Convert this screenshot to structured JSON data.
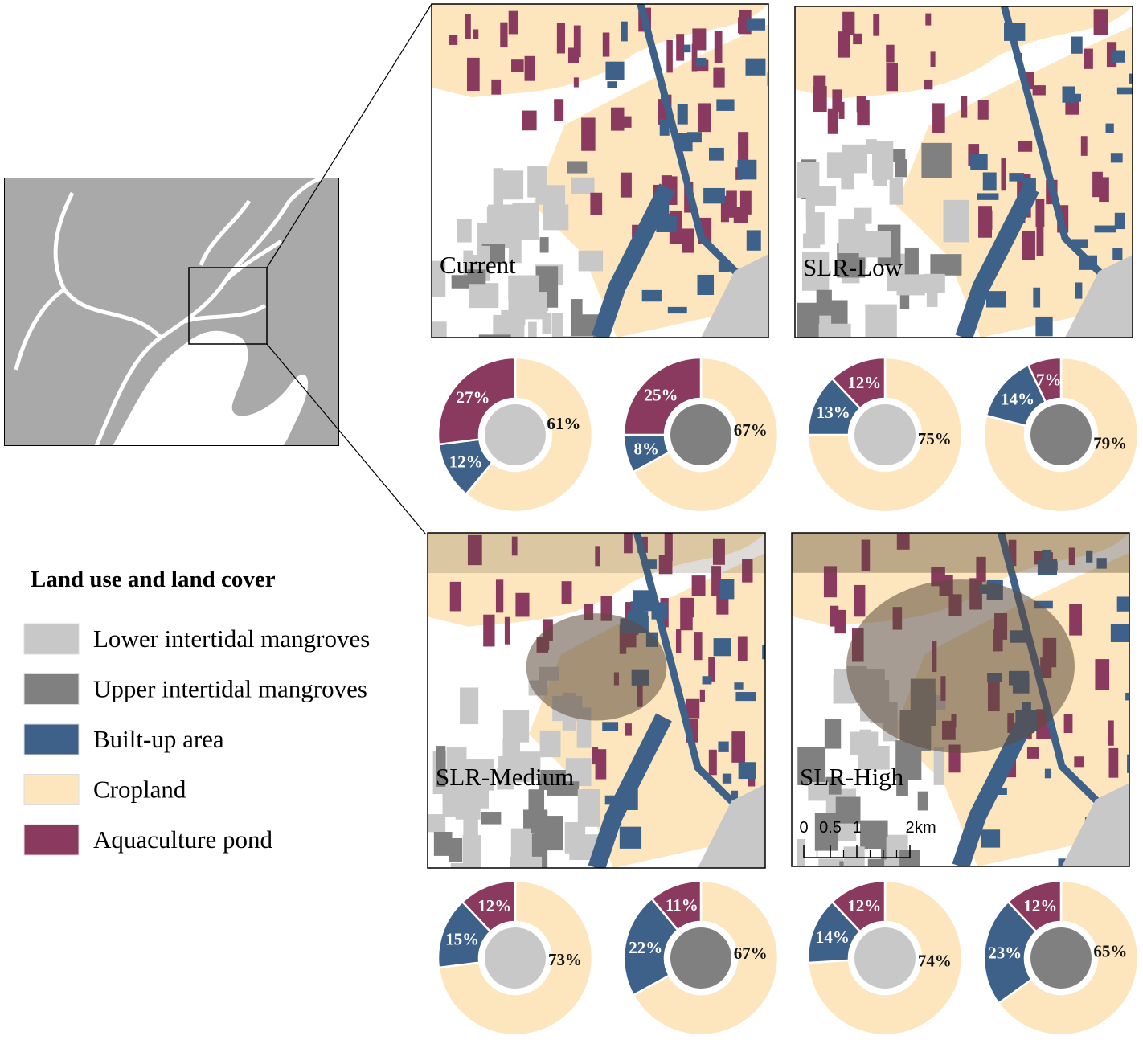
{
  "legend": {
    "title": "Land use and land cover",
    "items": [
      {
        "name": "Lower intertidal mangroves",
        "color": "#c8c8c8"
      },
      {
        "name": "Upper intertidal mangroves",
        "color": "#808080"
      },
      {
        "name": "Built-up area",
        "color": "#3e6189"
      },
      {
        "name": "Cropland",
        "color": "#fde6bd"
      },
      {
        "name": "Aquaculture pond",
        "color": "#8a3a5e"
      }
    ]
  },
  "maps": [
    {
      "label": "Current"
    },
    {
      "label": "SLR-Low"
    },
    {
      "label": "SLR-Medium"
    },
    {
      "label": "SLR-High"
    }
  ],
  "scale_bar": {
    "ticks": [
      0,
      0.5,
      1,
      2
    ],
    "unit": "km"
  },
  "chart_data": [
    {
      "type": "donut",
      "values": [
        61,
        12,
        27
      ],
      "value_labels": [
        "61%",
        "12%",
        "27%"
      ],
      "colors": [
        "#fde6bd",
        "#3e6189",
        "#8a3a5e"
      ],
      "center_color": "#c8c8c8"
    },
    {
      "type": "donut",
      "values": [
        67,
        8,
        25
      ],
      "value_labels": [
        "67%",
        "8%",
        "25%"
      ],
      "colors": [
        "#fde6bd",
        "#3e6189",
        "#8a3a5e"
      ],
      "center_color": "#808080"
    },
    {
      "type": "donut",
      "values": [
        75,
        13,
        12
      ],
      "value_labels": [
        "75%",
        "13%",
        "12%"
      ],
      "colors": [
        "#fde6bd",
        "#3e6189",
        "#8a3a5e"
      ],
      "center_color": "#c8c8c8"
    },
    {
      "type": "donut",
      "values": [
        79,
        14,
        7
      ],
      "value_labels": [
        "79%",
        "14%",
        "7%"
      ],
      "colors": [
        "#fde6bd",
        "#3e6189",
        "#8a3a5e"
      ],
      "center_color": "#808080"
    },
    {
      "type": "donut",
      "values": [
        73,
        15,
        12
      ],
      "value_labels": [
        "73%",
        "15%",
        "12%"
      ],
      "colors": [
        "#fde6bd",
        "#3e6189",
        "#8a3a5e"
      ],
      "center_color": "#c8c8c8"
    },
    {
      "type": "donut",
      "values": [
        67,
        22,
        11
      ],
      "value_labels": [
        "67%",
        "22%",
        "11%"
      ],
      "colors": [
        "#fde6bd",
        "#3e6189",
        "#8a3a5e"
      ],
      "center_color": "#808080"
    },
    {
      "type": "donut",
      "values": [
        74,
        14,
        12
      ],
      "value_labels": [
        "74%",
        "14%",
        "12%"
      ],
      "colors": [
        "#fde6bd",
        "#3e6189",
        "#8a3a5e"
      ],
      "center_color": "#c8c8c8"
    },
    {
      "type": "donut",
      "values": [
        65,
        23,
        12
      ],
      "value_labels": [
        "65%",
        "23%",
        "12%"
      ],
      "colors": [
        "#fde6bd",
        "#3e6189",
        "#8a3a5e"
      ],
      "center_color": "#808080"
    }
  ]
}
